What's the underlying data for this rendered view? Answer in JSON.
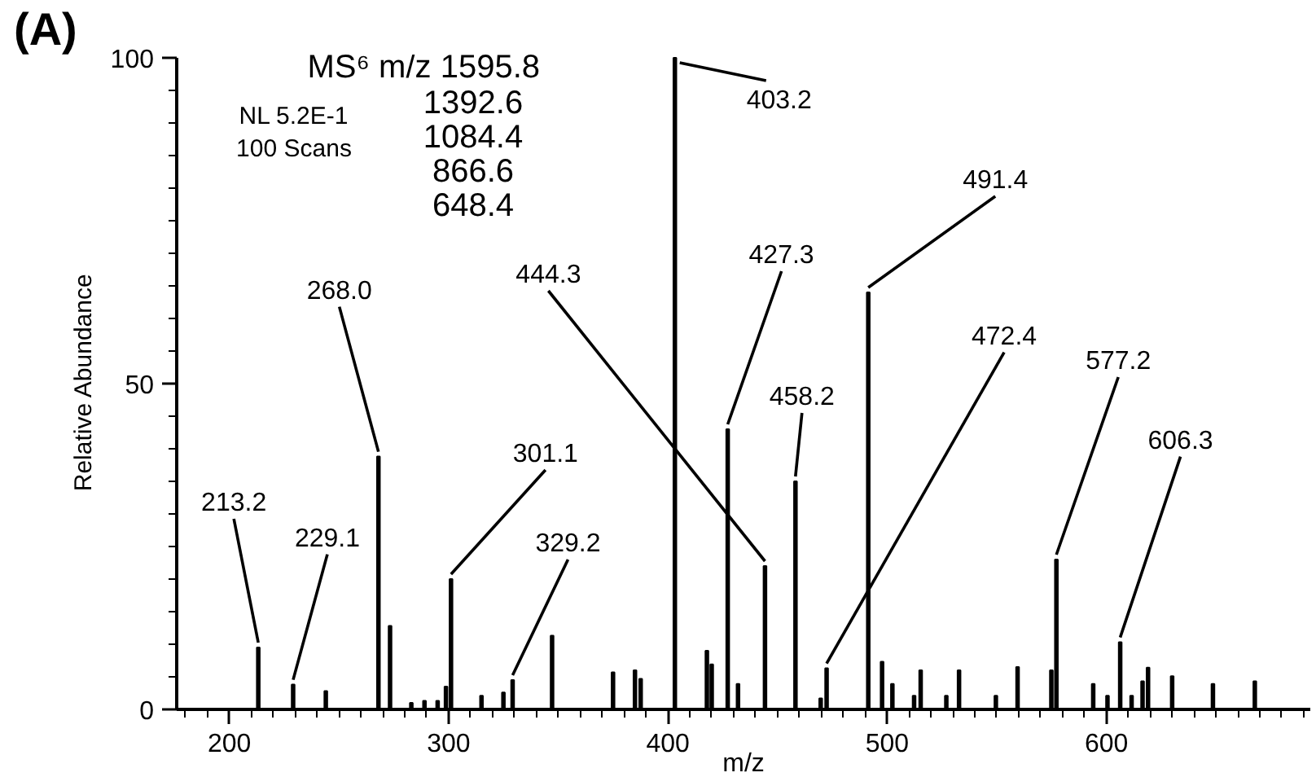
{
  "chart_data": {
    "type": "bar",
    "title": "(A)",
    "xlabel": "m/z",
    "ylabel": "Relative Abundance",
    "color": "#000000",
    "x": [
      213.2,
      229.1,
      244,
      268.0,
      273.3,
      283,
      289,
      295,
      298.8,
      301.1,
      315,
      325,
      329.2,
      347.2,
      375,
      385,
      387.6,
      403.2,
      417.8,
      420,
      427.3,
      432,
      444.3,
      458.2,
      469.7,
      472.4,
      491.4,
      497.7,
      502.4,
      512.3,
      515.3,
      527,
      532.8,
      549.6,
      559.5,
      574.9,
      577.2,
      594,
      600.5,
      606.3,
      611.5,
      616.5,
      619,
      630,
      648.6,
      667.7
    ],
    "values": [
      9.5,
      3.8,
      2.8,
      38.8,
      12.8,
      1,
      1.3,
      1.3,
      3.5,
      20,
      2.1,
      2.6,
      4.5,
      11.3,
      5.7,
      6,
      4.7,
      100,
      9,
      6.9,
      43,
      3.9,
      22,
      35,
      1.7,
      6.3,
      64,
      7.3,
      3.9,
      2.1,
      6,
      2.1,
      6,
      2.1,
      6.5,
      6,
      23,
      3.9,
      2.1,
      10.3,
      2.1,
      4.3,
      6.4,
      5.1,
      3.9,
      4.3
    ],
    "xlim": [
      176,
      693
    ],
    "ylim": [
      0,
      100
    ],
    "xticks": [
      {
        "value": 180,
        "label": null
      },
      {
        "value": 190,
        "label": null
      },
      200,
      {
        "value": 210,
        "label": null
      },
      {
        "value": 220,
        "label": null
      },
      {
        "value": 230,
        "label": null
      },
      {
        "value": 240,
        "label": null
      },
      {
        "value": 250,
        "label": null
      },
      {
        "value": 260,
        "label": null
      },
      {
        "value": 270,
        "label": null
      },
      {
        "value": 280,
        "label": null
      },
      {
        "value": 290,
        "label": null
      },
      300,
      {
        "value": 310,
        "label": null
      },
      {
        "value": 320,
        "label": null
      },
      {
        "value": 330,
        "label": null
      },
      {
        "value": 340,
        "label": null
      },
      {
        "value": 350,
        "label": null
      },
      {
        "value": 360,
        "label": null
      },
      {
        "value": 370,
        "label": null
      },
      {
        "value": 380,
        "label": null
      },
      {
        "value": 390,
        "label": null
      },
      400,
      {
        "value": 410,
        "label": null
      },
      {
        "value": 420,
        "label": null
      },
      {
        "value": 430,
        "label": null
      },
      {
        "value": 440,
        "label": null
      },
      {
        "value": 450,
        "label": null
      },
      {
        "value": 460,
        "label": null
      },
      {
        "value": 470,
        "label": null
      },
      {
        "value": 480,
        "label": null
      },
      {
        "value": 490,
        "label": null
      },
      500,
      {
        "value": 510,
        "label": null
      },
      {
        "value": 520,
        "label": null
      },
      {
        "value": 530,
        "label": null
      },
      {
        "value": 540,
        "label": null
      },
      {
        "value": 550,
        "label": null
      },
      {
        "value": 560,
        "label": null
      },
      {
        "value": 570,
        "label": null
      },
      {
        "value": 580,
        "label": null
      },
      {
        "value": 590,
        "label": null
      },
      600,
      {
        "value": 610,
        "label": null
      },
      {
        "value": 620,
        "label": null
      },
      {
        "value": 630,
        "label": null
      },
      {
        "value": 640,
        "label": null
      },
      {
        "value": 650,
        "label": null
      },
      {
        "value": 660,
        "label": null
      },
      {
        "value": 670,
        "label": null
      },
      {
        "value": 680,
        "label": null
      },
      {
        "value": 690,
        "label": null
      }
    ],
    "yticks": [
      0,
      {
        "value": 5,
        "label": null
      },
      {
        "value": 10,
        "label": null
      },
      {
        "value": 15,
        "label": null
      },
      {
        "value": 20,
        "label": null
      },
      {
        "value": 25,
        "label": null
      },
      {
        "value": 30,
        "label": null
      },
      {
        "value": 35,
        "label": null
      },
      {
        "value": 40,
        "label": null
      },
      {
        "value": 45,
        "label": null
      },
      50,
      {
        "value": 55,
        "label": null
      },
      {
        "value": 60,
        "label": null
      },
      {
        "value": 65,
        "label": null
      },
      {
        "value": 70,
        "label": null
      },
      {
        "value": 75,
        "label": null
      },
      {
        "value": 80,
        "label": null
      },
      {
        "value": 85,
        "label": null
      },
      {
        "value": 90,
        "label": null
      },
      {
        "value": 95,
        "label": null
      },
      100
    ],
    "grid": false,
    "annotations": [
      "MS⁶ m/z 1595.8",
      "1392.6",
      "1084.4",
      "866.6",
      "648.4",
      "NL 5.2E-1",
      "100 Scans",
      {
        "text": "213.2",
        "x": 213.2,
        "y": 9.5
      },
      {
        "text": "229.1",
        "x": 229.1,
        "y": 3.8
      },
      {
        "text": "268.0",
        "x": 268.0,
        "y": 38.8
      },
      {
        "text": "301.1",
        "x": 301.1,
        "y": 20
      },
      {
        "text": "329.2",
        "x": 329.2,
        "y": 4.5
      },
      {
        "text": "403.2",
        "x": 403.2,
        "y": 100
      },
      {
        "text": "427.3",
        "x": 427.3,
        "y": 43
      },
      {
        "text": "444.3",
        "x": 444.3,
        "y": 22
      },
      {
        "text": "458.2",
        "x": 458.2,
        "y": 35
      },
      {
        "text": "472.4",
        "x": 472.4,
        "y": 6.3
      },
      {
        "text": "491.4",
        "x": 491.4,
        "y": 64
      },
      {
        "text": "577.2",
        "x": 577.2,
        "y": 23
      },
      {
        "text": "606.3",
        "x": 606.3,
        "y": 10.3
      }
    ]
  }
}
